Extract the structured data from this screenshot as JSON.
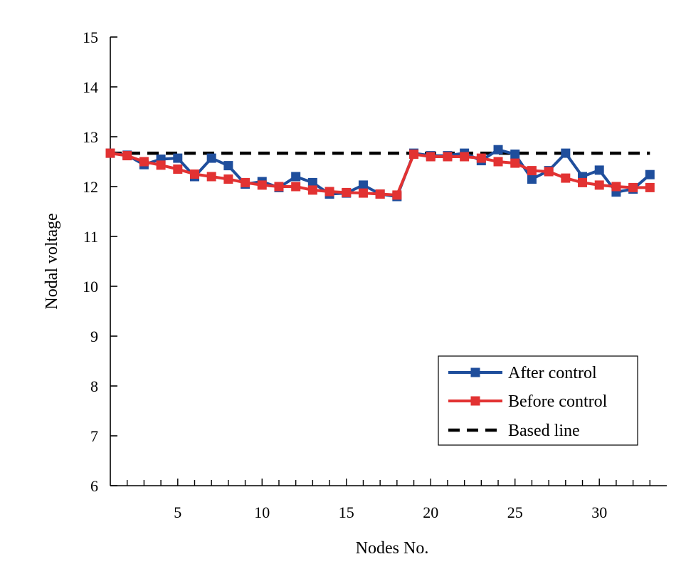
{
  "chart_data": {
    "type": "line",
    "title": "",
    "xlabel": "Nodes No.",
    "ylabel": "Nodal voltage",
    "xlim": [
      1,
      34
    ],
    "ylim": [
      6,
      15
    ],
    "x_major_ticks": [
      5,
      10,
      15,
      20,
      25,
      30
    ],
    "y_ticks": [
      6,
      7,
      8,
      9,
      10,
      11,
      12,
      13,
      14,
      15
    ],
    "grid": false,
    "legend_position": "lower-right",
    "x": [
      1,
      2,
      3,
      4,
      5,
      6,
      7,
      8,
      9,
      10,
      11,
      12,
      13,
      14,
      15,
      16,
      17,
      18,
      19,
      20,
      21,
      22,
      23,
      24,
      25,
      26,
      27,
      28,
      29,
      30,
      31,
      32,
      33
    ],
    "series": [
      {
        "name": "After control",
        "color": "#1f4e9c",
        "marker": "square",
        "line_style": "solid",
        "values": [
          12.67,
          12.63,
          12.44,
          12.55,
          12.57,
          12.2,
          12.57,
          12.42,
          12.05,
          12.1,
          11.98,
          12.2,
          12.08,
          11.85,
          11.87,
          12.03,
          11.85,
          11.8,
          12.67,
          12.62,
          12.62,
          12.67,
          12.52,
          12.74,
          12.65,
          12.15,
          12.32,
          12.67,
          12.2,
          12.33,
          11.89,
          11.95,
          12.24
        ]
      },
      {
        "name": "Before control",
        "color": "#e23232",
        "marker": "square",
        "line_style": "solid",
        "values": [
          12.67,
          12.62,
          12.5,
          12.43,
          12.35,
          12.25,
          12.2,
          12.15,
          12.08,
          12.03,
          12.0,
          12.0,
          11.93,
          11.9,
          11.88,
          11.87,
          11.85,
          11.83,
          12.65,
          12.6,
          12.6,
          12.6,
          12.57,
          12.5,
          12.47,
          12.32,
          12.3,
          12.17,
          12.08,
          12.03,
          12.0,
          11.98,
          11.98
        ]
      },
      {
        "name": "Based line",
        "color": "#000000",
        "marker": "none",
        "line_style": "dashed",
        "values": [
          12.67,
          12.67,
          12.67,
          12.67,
          12.67,
          12.67,
          12.67,
          12.67,
          12.67,
          12.67,
          12.67,
          12.67,
          12.67,
          12.67,
          12.67,
          12.67,
          12.67,
          12.67,
          12.67,
          12.67,
          12.67,
          12.67,
          12.67,
          12.67,
          12.67,
          12.67,
          12.67,
          12.67,
          12.67,
          12.67,
          12.67,
          12.67,
          12.67
        ]
      }
    ]
  }
}
